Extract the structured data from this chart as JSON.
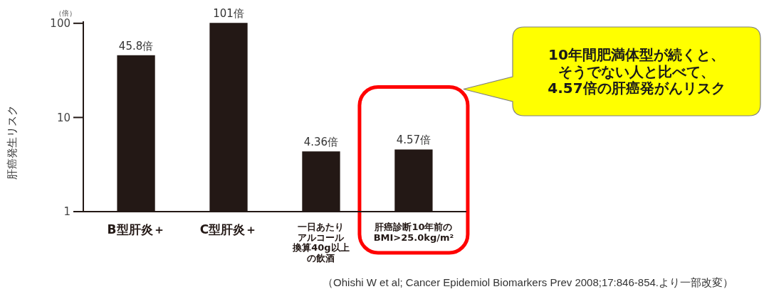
{
  "chart_data": {
    "type": "bar",
    "ylabel": "肝癌発生リスク",
    "categories": [
      "B型肝炎＋",
      "C型肝炎＋",
      "一日あたりアルコール換算40g以上の飲酒",
      "肝癌診断10年前のBMI>25.0kg/m²"
    ],
    "values": [
      45.8,
      101,
      4.36,
      4.57
    ],
    "color": "#231815",
    "value_labels": [
      "45.8倍",
      "101倍",
      "4.36倍",
      "4.57倍"
    ],
    "log": true,
    "ylim": [
      1,
      105
    ],
    "yticks": [
      1,
      10,
      100
    ],
    "annotations": [
      "（倍）",
      "10年間肥満体型が続くと、そうでない人と比べて、4.57倍の肝癌発がんリスク",
      "（Ohishi W et al; Cancer Epidemiol Biomarkers Prev 2008;17:846-854.より一部改変）"
    ]
  }
}
